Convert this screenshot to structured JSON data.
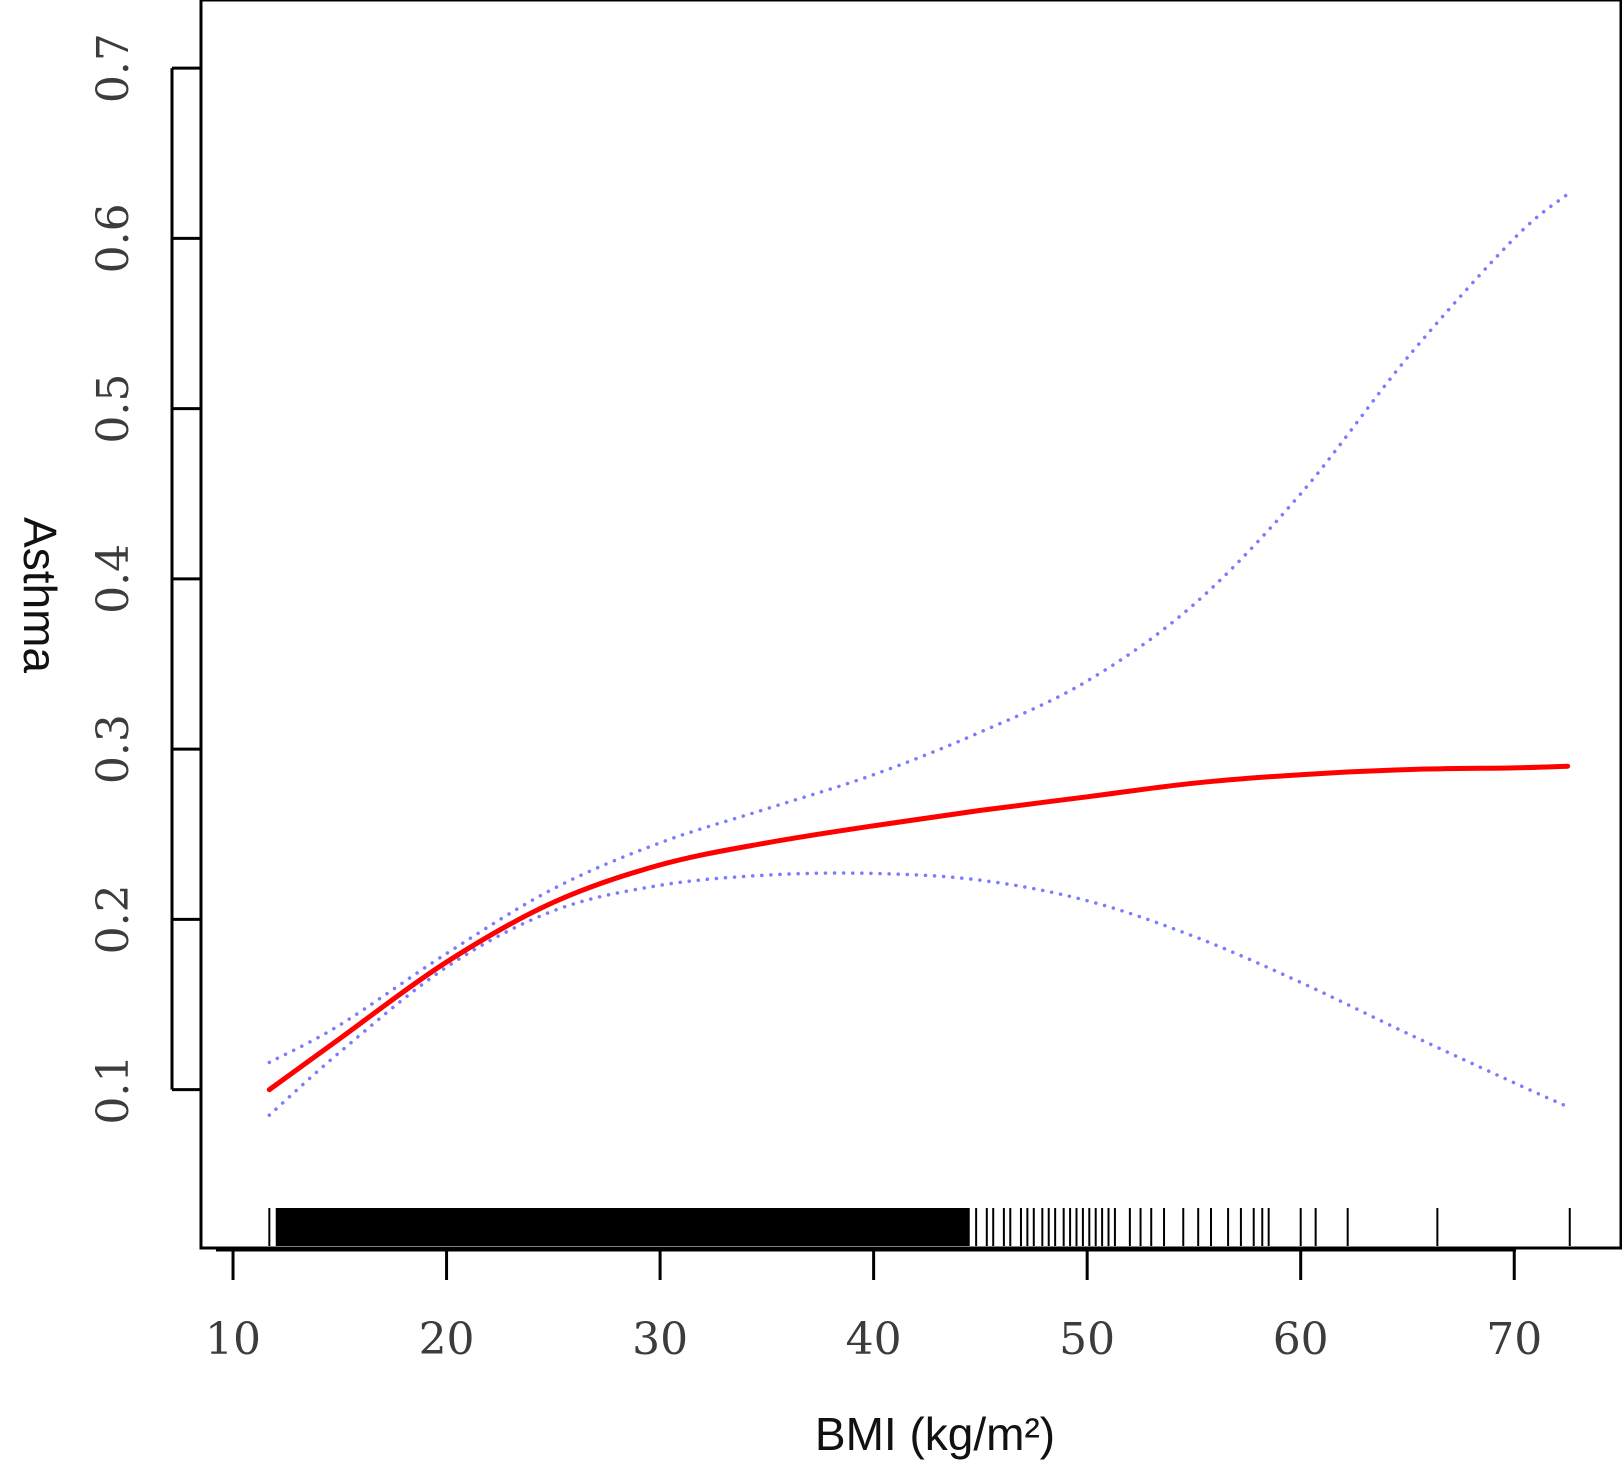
{
  "chart_data": {
    "type": "line",
    "xlabel": "BMI (kg/m²)",
    "ylabel": "Asthma",
    "xlim": [
      8.5,
      75
    ],
    "ylim": [
      0.007,
      0.74
    ],
    "x_ticks": [
      10,
      20,
      30,
      40,
      50,
      60,
      70
    ],
    "x_tick_labels": [
      "10",
      "20",
      "30",
      "40",
      "50",
      "60",
      "70"
    ],
    "y_ticks": [
      0.1,
      0.2,
      0.3,
      0.4,
      0.5,
      0.6,
      0.7
    ],
    "y_tick_labels": [
      "0.1",
      "0.2",
      "0.3",
      "0.4",
      "0.5",
      "0.6",
      "0.7"
    ],
    "grid": false,
    "legend": "none",
    "colors": {
      "fit": "#ff0000",
      "ci": "#7b7bff",
      "rug": "#000000",
      "axis": "#000000"
    },
    "series": [
      {
        "style": "solid",
        "x": [
          11.7,
          15,
          20,
          25,
          30,
          35,
          40,
          45,
          50,
          55,
          60,
          65,
          70,
          72.5
        ],
        "y": [
          0.1,
          0.13,
          0.175,
          0.21,
          0.232,
          0.245,
          0.255,
          0.264,
          0.272,
          0.28,
          0.285,
          0.288,
          0.289,
          0.29
        ]
      },
      {
        "style": "dotted",
        "x": [
          11.7,
          15,
          20,
          25,
          30,
          35,
          40,
          45,
          50,
          55,
          60,
          65,
          70,
          72.5
        ],
        "y": [
          0.116,
          0.138,
          0.18,
          0.218,
          0.245,
          0.265,
          0.285,
          0.31,
          0.34,
          0.385,
          0.45,
          0.53,
          0.6,
          0.626
        ]
      },
      {
        "style": "dotted",
        "x": [
          11.7,
          15,
          20,
          25,
          30,
          35,
          40,
          45,
          50,
          55,
          60,
          65,
          70,
          72.5
        ],
        "y": [
          0.085,
          0.122,
          0.172,
          0.205,
          0.22,
          0.226,
          0.227,
          0.223,
          0.211,
          0.19,
          0.163,
          0.133,
          0.104,
          0.09
        ]
      }
    ],
    "rug": {
      "dense_range": [
        12,
        44.5
      ],
      "values": [
        44.8,
        45.3,
        45.6,
        46.1,
        46.4,
        46.9,
        47.2,
        47.5,
        47.9,
        48.2,
        48.5,
        48.9,
        49.2,
        49.5,
        49.8,
        50.1,
        50.4,
        50.7,
        51.0,
        51.3,
        52.0,
        52.5,
        53.0,
        53.6,
        54.5,
        55.2,
        55.8,
        56.6,
        57.2,
        57.8,
        58.2,
        58.5,
        60.0,
        60.7,
        62.2,
        66.4,
        72.6
      ]
    }
  }
}
